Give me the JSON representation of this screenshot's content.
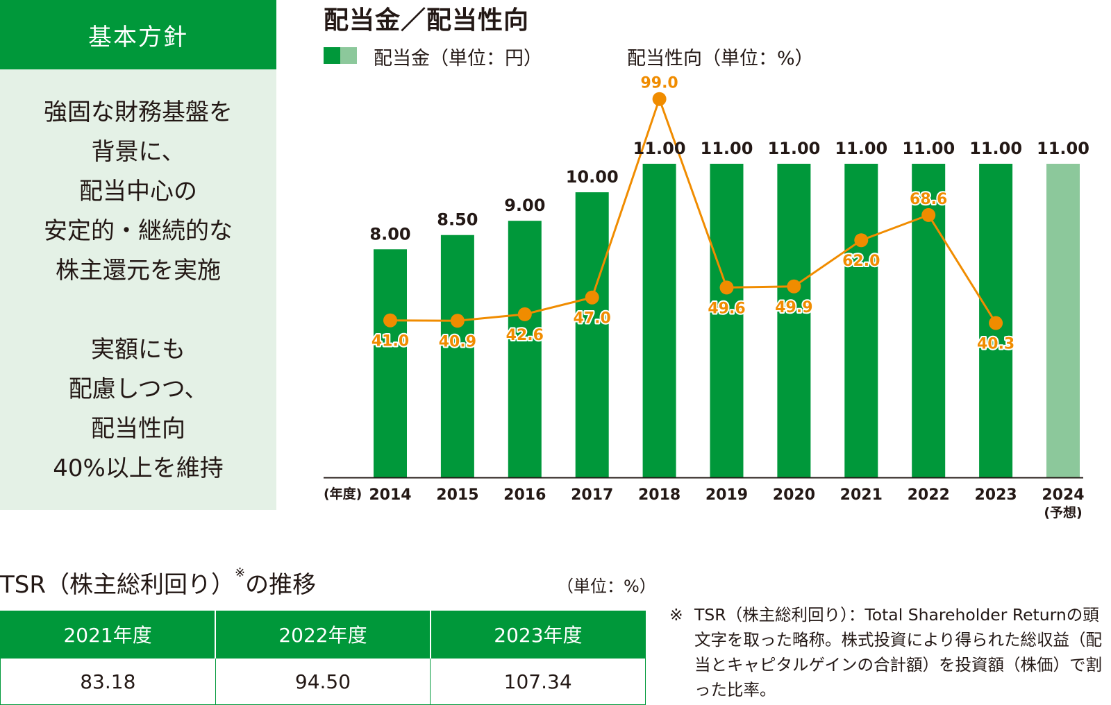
{
  "policy": {
    "header": "基本方針",
    "lines": [
      "強固な財務基盤を",
      "背景に、",
      "配当中心の",
      "安定的・継続的な",
      "株主還元を実施",
      "",
      "実額にも",
      "配慮しつつ、",
      "配当性向",
      "40%以上を維持"
    ]
  },
  "legend": {
    "dividend": "配当金（単位：円）",
    "payout": "配当性向（単位：%）"
  },
  "colors": {
    "bar": "#00983a",
    "bar_forecast": "#8cc89b",
    "line": "#f08c00",
    "panel": "#e4f1e6"
  },
  "chart_data": {
    "type": "bar",
    "title": "配当金／配当性向",
    "x_axis_prefix": "(年度)",
    "categories": [
      "2014",
      "2015",
      "2016",
      "2017",
      "2018",
      "2019",
      "2020",
      "2021",
      "2022",
      "2023",
      "2024"
    ],
    "category_sublabels": [
      "",
      "",
      "",
      "",
      "",
      "",
      "",
      "",
      "",
      "",
      "(予想)"
    ],
    "series": [
      {
        "name": "配当金",
        "unit": "円",
        "type": "bar",
        "values": [
          8.0,
          8.5,
          9.0,
          10.0,
          11.0,
          11.0,
          11.0,
          11.0,
          11.0,
          11.0,
          11.0
        ],
        "labels": [
          "8.00",
          "8.50",
          "9.00",
          "10.00",
          "11.00",
          "11.00",
          "11.00",
          "11.00",
          "11.00",
          "11.00",
          "11.00"
        ],
        "forecast": [
          false,
          false,
          false,
          false,
          false,
          false,
          false,
          false,
          false,
          false,
          true
        ]
      },
      {
        "name": "配当性向",
        "unit": "%",
        "type": "line",
        "values": [
          41.0,
          40.9,
          42.6,
          47.0,
          99.0,
          49.6,
          49.9,
          62.0,
          68.6,
          40.3,
          null
        ],
        "labels": [
          "41.0",
          "40.9",
          "42.6",
          "47.0",
          "99.0",
          "49.6",
          "49.9",
          "62.0",
          "68.6",
          "40.3",
          ""
        ]
      }
    ],
    "ylim_bar": [
      0,
      12
    ],
    "ylim_line": [
      0,
      100
    ]
  },
  "tsr": {
    "title": "TSR（株主総利回り）",
    "title_mark": "※",
    "title_suffix": "の推移",
    "unit": "（単位：%）",
    "headers": [
      "2021年度",
      "2022年度",
      "2023年度"
    ],
    "values": [
      "83.18",
      "94.50",
      "107.34"
    ],
    "note_mark": "※",
    "note": "TSR（株主総利回り）：Total Shareholder Returnの頭文字を取った略称。株式投資により得られた総収益（配当とキャピタルゲインの合計額）を投資額（株価）で割った比率。"
  }
}
